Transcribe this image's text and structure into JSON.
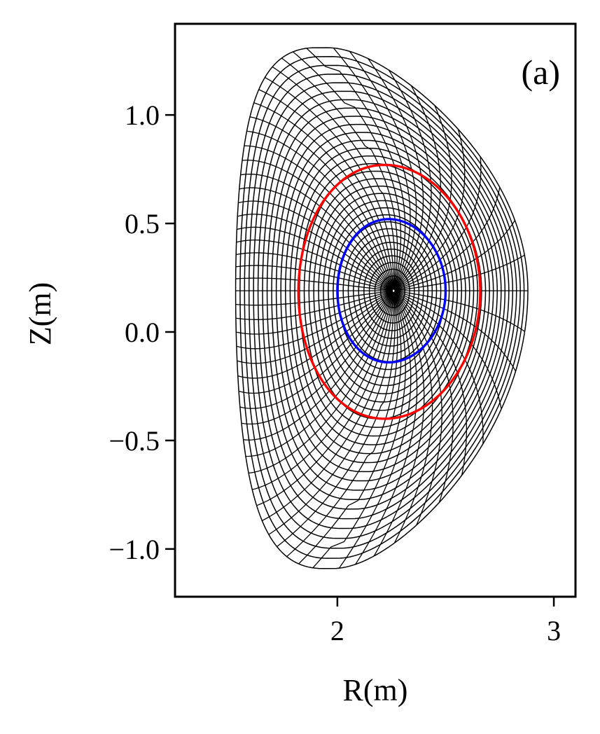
{
  "chart_data": {
    "type": "line",
    "title": "",
    "panel_label": "(a)",
    "xlabel": "R(m)",
    "ylabel": "Z(m)",
    "xlim": [
      1.25,
      3.1
    ],
    "ylim": [
      -1.22,
      1.42
    ],
    "x_ticks": [
      2,
      3
    ],
    "x_tick_labels": [
      "2",
      "3"
    ],
    "y_ticks": [
      1.0,
      0.5,
      0.0,
      -0.5,
      -1.0
    ],
    "y_tick_labels": [
      "1.0",
      "0.5",
      "0.0",
      "−0.5",
      "−1.0"
    ],
    "grid": false,
    "legend": "none",
    "equilibrium": {
      "magnetic_axis": [
        2.26,
        0.19
      ],
      "boundary": {
        "r_outer": 2.88,
        "r_inner": 1.53,
        "z_top": 1.31,
        "r_top": 1.9,
        "z_bottom": -1.09,
        "r_bottom": 1.93
      },
      "flux_surface_count": 32,
      "poloidal_line_count": 64
    },
    "highlighted_surfaces": [
      {
        "color": "#ff0000",
        "r_min": 1.82,
        "r_max": 2.66,
        "z_min": -0.4,
        "z_max": 0.77
      },
      {
        "color": "#0000ff",
        "r_min": 2.0,
        "r_max": 2.5,
        "z_min": -0.14,
        "z_max": 0.52
      }
    ],
    "colors": {
      "mesh": "#000000",
      "frame": "#000000"
    }
  }
}
